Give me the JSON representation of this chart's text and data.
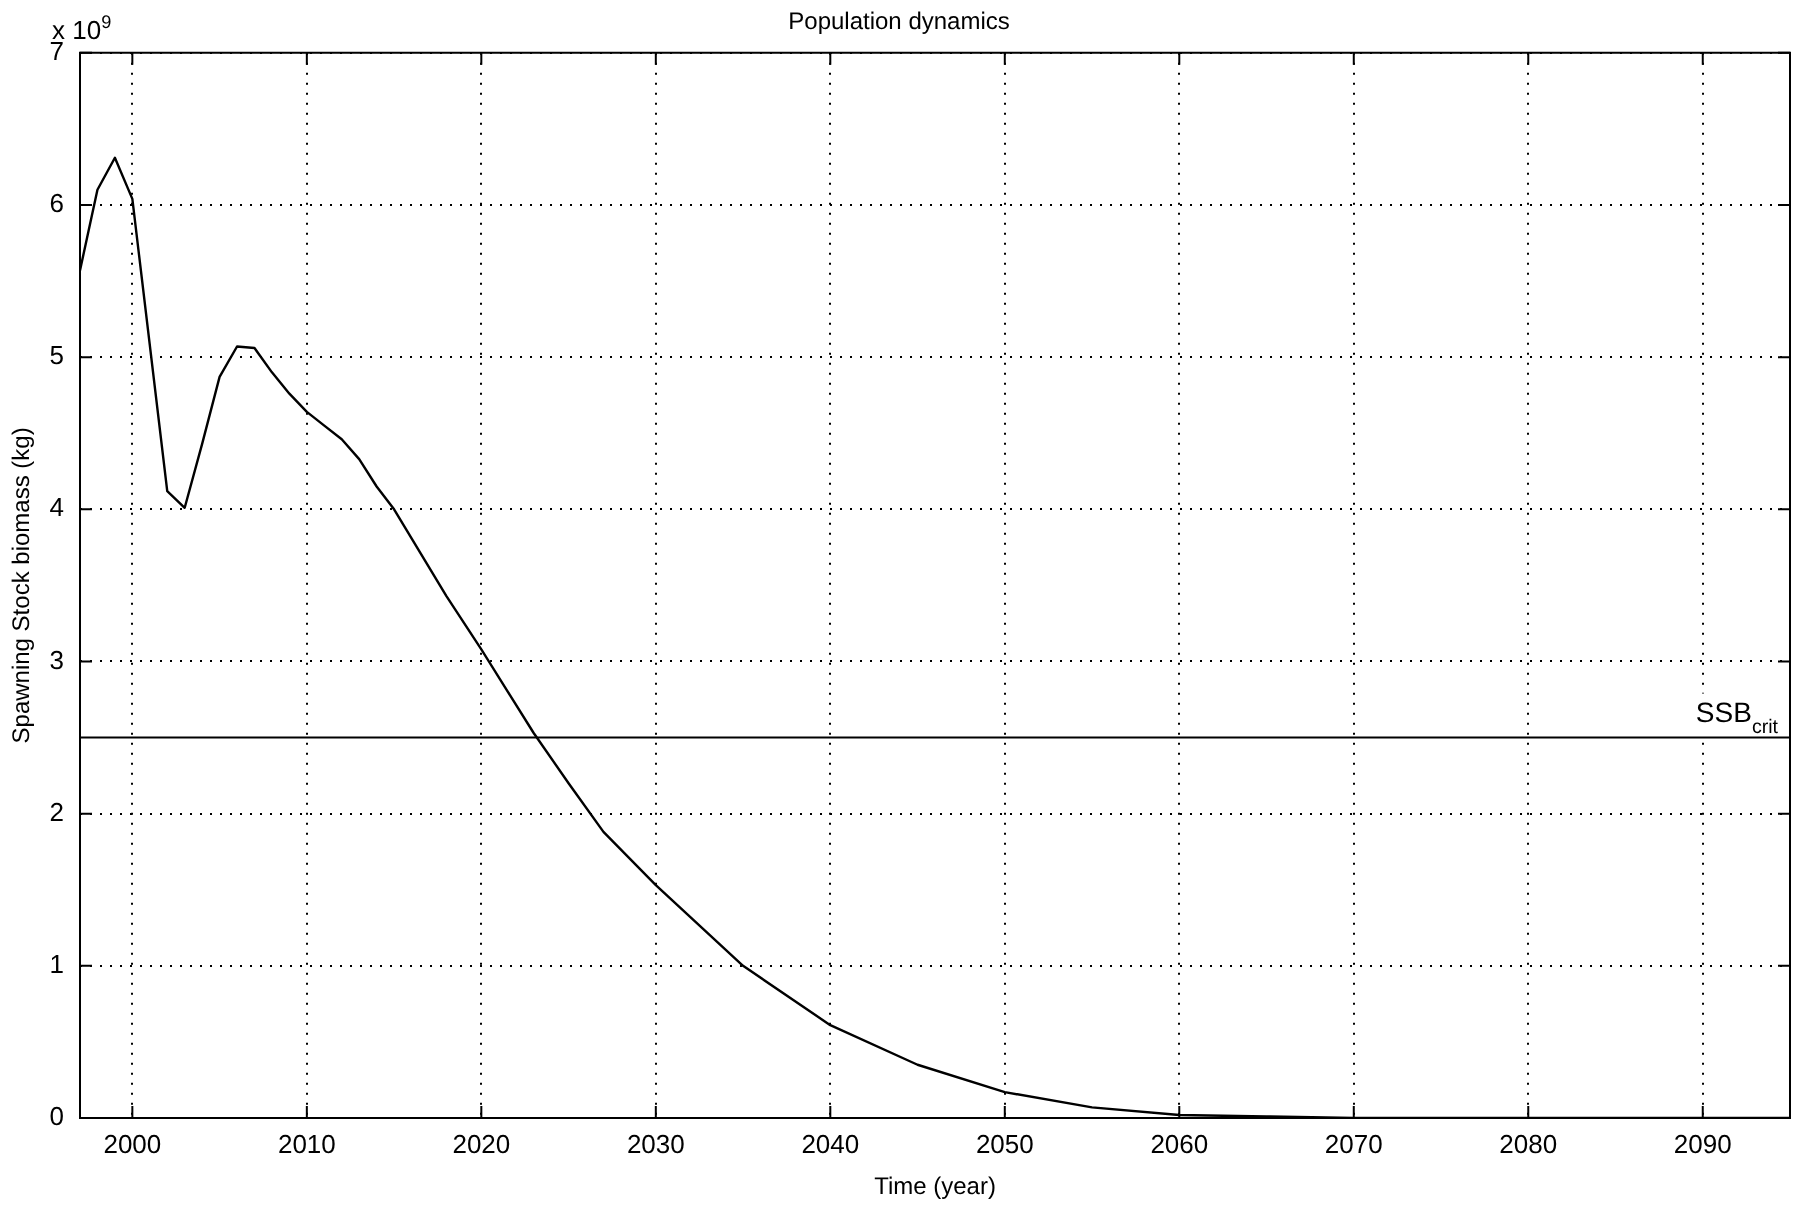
{
  "chart_data": {
    "type": "line",
    "title": "Population dynamics",
    "xlabel": "Time (year)",
    "ylabel": "Spawning Stock biomass (kg)",
    "annotations": [
      "x 10$^{9}$"
    ],
    "x": [
      1997,
      1998,
      1999,
      2000,
      2002,
      2003,
      2004,
      2005,
      2006,
      2007,
      2008,
      2009,
      2010,
      2011,
      2012,
      2013,
      2014,
      2015,
      2018,
      2020,
      2023,
      2025,
      2027,
      2030,
      2035,
      2040,
      2045,
      2050,
      2055,
      2060,
      2065,
      2070,
      2095
    ],
    "series": [
      {
        "color": "#000000",
        "values": [
          5.57,
          6.1,
          6.31,
          6.04,
          4.12,
          4.01,
          4.43,
          4.87,
          5.07,
          5.06,
          4.9,
          4.76,
          4.64,
          4.55,
          4.46,
          4.33,
          4.15,
          4.0,
          3.43,
          3.08,
          2.53,
          2.2,
          1.88,
          1.53,
          1.0,
          0.61,
          0.35,
          0.17,
          0.07,
          0.02,
          0.01,
          0,
          0
        ]
      }
    ],
    "xlim": [
      1997,
      2095
    ],
    "xticks": [
      2000,
      2010,
      2020,
      2030,
      2040,
      2050,
      2060,
      2070,
      2080,
      2090
    ],
    "ylim": [
      0,
      7
    ],
    "yticks": [
      0,
      1,
      2,
      3,
      4,
      5,
      6,
      7
    ],
    "ref_lines": [
      {
        "axis": "y",
        "value": 2.5,
        "label": "SSB$_{crit}$",
        "color": "#000000"
      }
    ],
    "grid": true,
    "legend": false,
    "marker": "none",
    "line_style": "solid"
  }
}
